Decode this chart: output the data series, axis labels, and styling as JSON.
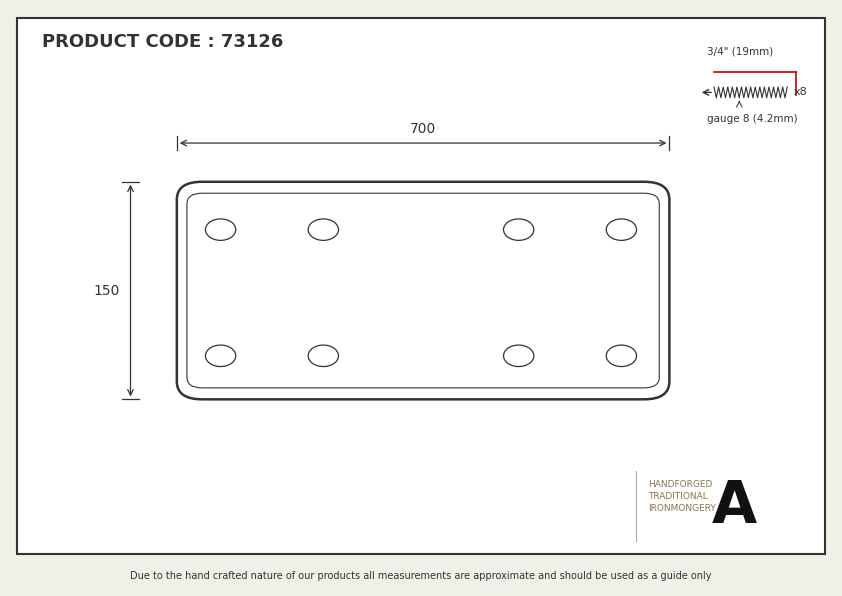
{
  "bg_color": "#f0f0e8",
  "border_color": "#333333",
  "drawing_color": "#333333",
  "title": "PRODUCT CODE : 73126",
  "footer_text": "Due to the hand crafted nature of our products all measurements are approximate and should be used as a guide only",
  "brand_text_line1": "HANDFORGED",
  "brand_text_line2": "TRADITIONAL",
  "brand_text_line3": "IRONMONGERY",
  "plate_width_label": "700",
  "plate_height_label": "150",
  "screw_label_top": "3/4\" (19mm)",
  "screw_label_bottom": "gauge 8 (4.2mm)",
  "screw_count_label": "x8",
  "brand_color": "#8B7355",
  "red_color": "#cc0000",
  "logo_color": "#111111"
}
